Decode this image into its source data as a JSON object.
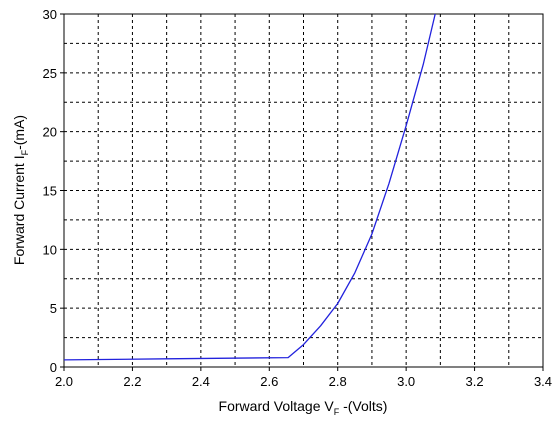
{
  "chart_data": {
    "type": "line",
    "title": "",
    "xlabel": {
      "main": "Forward Voltage V",
      "sub": "F",
      "unit": " -(Volts)"
    },
    "ylabel": {
      "main": "Forward Current I",
      "sub": "F",
      "unit": "-(mA)"
    },
    "xlim": [
      2.0,
      3.4
    ],
    "ylim": [
      0,
      30
    ],
    "xticks": [
      "2.0",
      "2.2",
      "2.4",
      "2.6",
      "2.8",
      "3.0",
      "3.2",
      "3.4"
    ],
    "yticks": [
      "0",
      "5",
      "10",
      "15",
      "20",
      "25",
      "30"
    ],
    "grid": true,
    "grid_style": "dotted",
    "series": [
      {
        "color": "#2222dd",
        "x": [
          2.0,
          2.3,
          2.655,
          2.7,
          2.75,
          2.8,
          2.85,
          2.9,
          2.95,
          3.0,
          3.05,
          3.085
        ],
        "y": [
          0.6,
          0.7,
          0.8,
          1.9,
          3.5,
          5.4,
          8.0,
          11.3,
          15.6,
          20.5,
          25.7,
          30.0
        ]
      }
    ]
  }
}
